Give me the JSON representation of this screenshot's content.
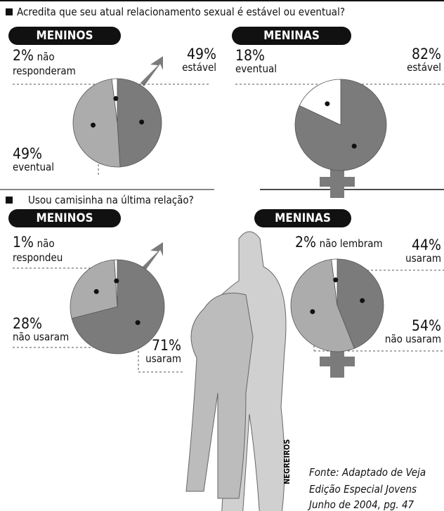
{
  "questions": [
    "Acredita que seu atual relacionamento sexual é estável ou eventual?",
    "Usou camisinha na última relação?"
  ],
  "chart_data": [
    {
      "type": "pie",
      "title": "MENINOS",
      "categories": [
        "estável",
        "eventual",
        "não responderam"
      ],
      "values": [
        49,
        49,
        2
      ],
      "value_labels": [
        "49%",
        "49%",
        "2%"
      ],
      "colors": [
        "#7b7b7b",
        "#acacac",
        "#ffffff"
      ]
    },
    {
      "type": "pie",
      "title": "MENINAS",
      "categories": [
        "estável",
        "eventual"
      ],
      "values": [
        82,
        18
      ],
      "value_labels": [
        "82%",
        "18%"
      ],
      "colors": [
        "#7b7b7b",
        "#ffffff"
      ]
    },
    {
      "type": "pie",
      "title": "MENINOS",
      "categories": [
        "usaram",
        "não usaram",
        "não respondeu"
      ],
      "values": [
        71,
        28,
        1
      ],
      "value_labels": [
        "71%",
        "28%",
        "1%"
      ],
      "colors": [
        "#7b7b7b",
        "#acacac",
        "#ffffff"
      ]
    },
    {
      "type": "pie",
      "title": "MENINAS",
      "categories": [
        "usaram",
        "não usaram",
        "não lembram"
      ],
      "values": [
        44,
        54,
        2
      ],
      "value_labels": [
        "44%",
        "54%",
        "2%"
      ],
      "colors": [
        "#7b7b7b",
        "#acacac",
        "#ffffff"
      ]
    }
  ],
  "signature": "NEGREIROS",
  "source": [
    "Fonte: Adaptado de Veja",
    "Edição Especial Jovens",
    "Junho de 2004, pg. 47"
  ]
}
